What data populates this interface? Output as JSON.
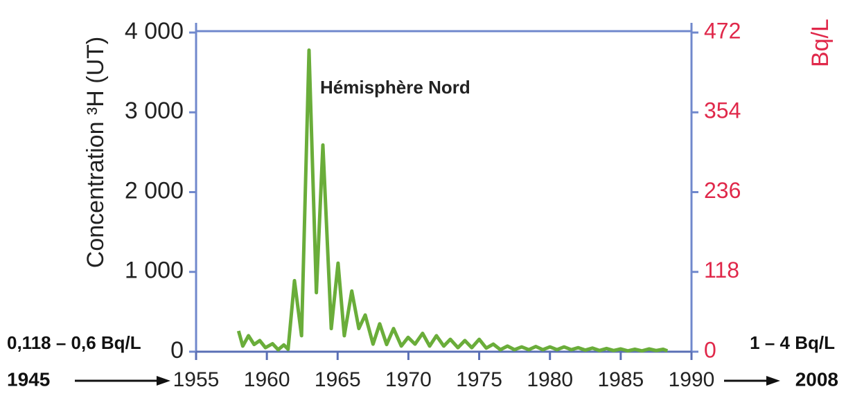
{
  "chart_data": {
    "type": "line",
    "ylabel": "Concentration ³H (UT)",
    "y2label": "Bq/L",
    "annotations": [
      "0,118 – 0,6 Bq/L",
      "1 – 4 Bq/L",
      "1945",
      "2008"
    ],
    "xlim": [
      1955,
      1990
    ],
    "xticks": [
      1955,
      1960,
      1965,
      1970,
      1975,
      1980,
      1985,
      1990
    ],
    "ylim": [
      0,
      4000
    ],
    "yticks": [
      0,
      {
        "value": 1000,
        "label": "1 000"
      },
      {
        "value": 2000,
        "label": "2 000"
      },
      {
        "value": 3000,
        "label": "3 000"
      },
      {
        "value": 4000,
        "label": "4 000"
      }
    ],
    "y2lim": [
      0,
      472
    ],
    "y2ticks": [
      0,
      118,
      236,
      354,
      472
    ],
    "x": [
      1958.0,
      1958.3,
      1958.7,
      1959.1,
      1959.5,
      1959.9,
      1960.4,
      1960.8,
      1961.2,
      1961.5,
      1961.95,
      1962.45,
      1962.98,
      1963.5,
      1963.96,
      1964.55,
      1965.03,
      1965.47,
      1966.0,
      1966.5,
      1966.95,
      1967.5,
      1967.97,
      1968.46,
      1968.95,
      1969.5,
      1969.98,
      1970.47,
      1971.0,
      1971.5,
      1971.98,
      1972.5,
      1972.96,
      1973.5,
      1973.99,
      1974.48,
      1975.0,
      1975.5,
      1976.0,
      1976.5,
      1977.0,
      1977.5,
      1978.0,
      1978.5,
      1979.0,
      1979.5,
      1980.0,
      1980.5,
      1981.0,
      1981.5,
      1982.0,
      1982.5,
      1983.0,
      1983.5,
      1984.0,
      1984.5,
      1985.0,
      1985.5,
      1986.0,
      1986.5,
      1987.0,
      1987.5,
      1988.0,
      1988.3
    ],
    "series": [
      {
        "name": "Hémisphère Nord",
        "color": "#6aad3a",
        "values": [
          260,
          70,
          200,
          90,
          140,
          50,
          100,
          25,
          85,
          30,
          890,
          200,
          3780,
          740,
          2590,
          290,
          1110,
          200,
          760,
          290,
          460,
          95,
          350,
          90,
          290,
          70,
          180,
          95,
          230,
          70,
          200,
          70,
          155,
          50,
          140,
          50,
          155,
          45,
          95,
          25,
          70,
          25,
          60,
          25,
          65,
          25,
          60,
          25,
          60,
          25,
          50,
          20,
          45,
          15,
          40,
          15,
          35,
          10,
          30,
          10,
          35,
          15,
          30,
          10
        ]
      }
    ],
    "axis_color": "#7088cc",
    "y2_color": "#e0284a"
  }
}
